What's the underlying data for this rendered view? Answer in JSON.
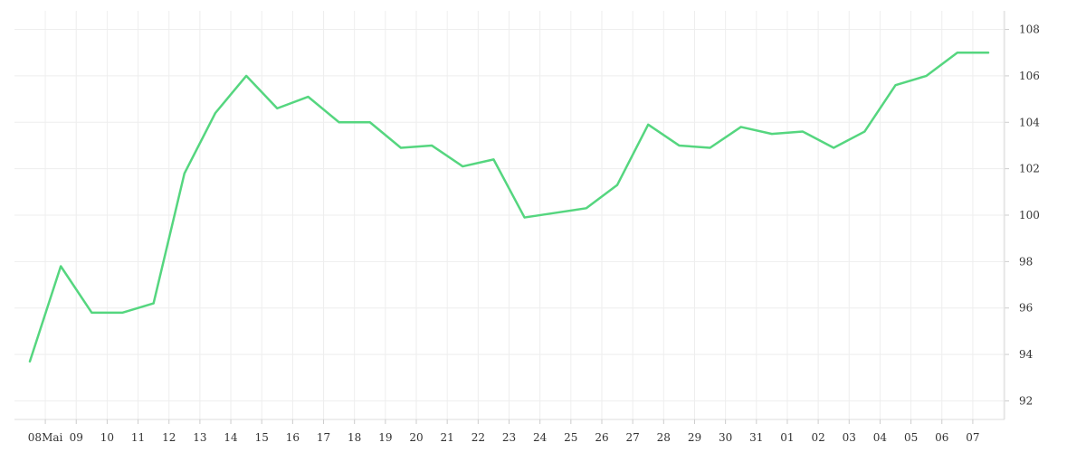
{
  "chart_data": {
    "type": "line",
    "title": "",
    "xlabel": "",
    "ylabel": "",
    "x_tick_labels": [
      "08Mai",
      "09",
      "10",
      "11",
      "12",
      "13",
      "14",
      "15",
      "16",
      "17",
      "18",
      "19",
      "20",
      "21",
      "22",
      "23",
      "24",
      "25",
      "26",
      "27",
      "28",
      "29",
      "30",
      "31",
      "01",
      "02",
      "03",
      "04",
      "05",
      "06",
      "07"
    ],
    "y_ticks": [
      92,
      94,
      96,
      98,
      100,
      102,
      104,
      106,
      108
    ],
    "ylim": [
      91.2,
      108.8
    ],
    "grid": true,
    "legend": "none",
    "series": [
      {
        "color": "#55d67f",
        "values": [
          93.7,
          97.8,
          95.8,
          95.8,
          96.2,
          101.8,
          104.4,
          106.0,
          104.6,
          105.1,
          104.0,
          104.0,
          102.9,
          103.0,
          102.1,
          102.4,
          99.9,
          100.1,
          100.3,
          101.3,
          103.9,
          103.0,
          102.9,
          103.8,
          103.5,
          103.6,
          102.9,
          103.6,
          105.6,
          106.0,
          107.0,
          107.0
        ]
      }
    ]
  }
}
